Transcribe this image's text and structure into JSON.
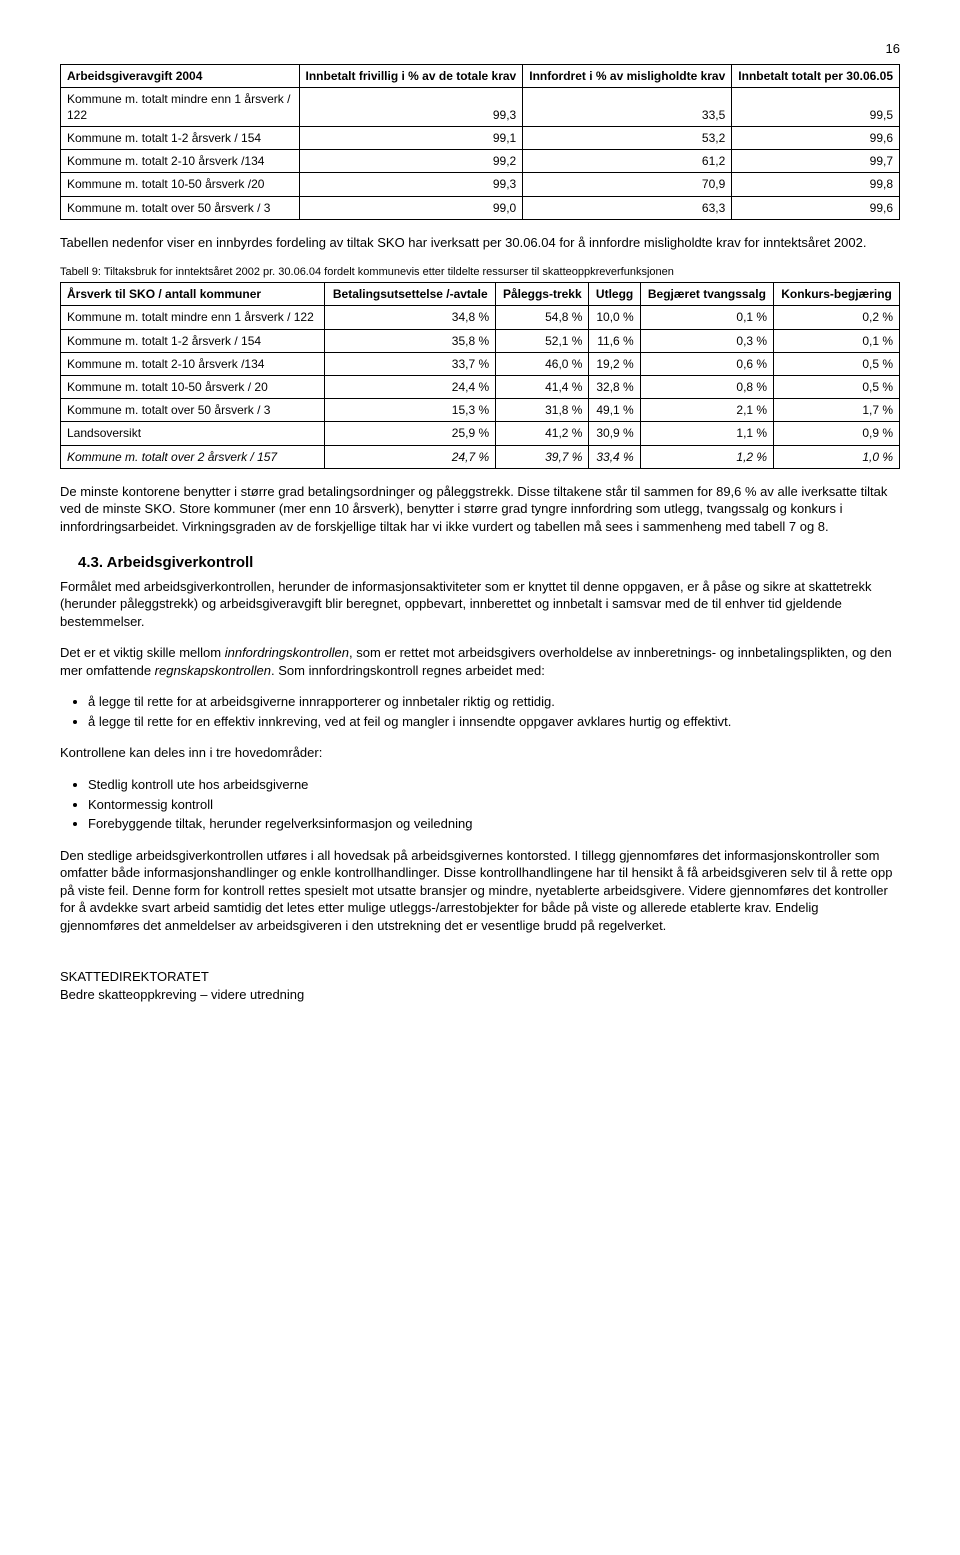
{
  "page_number": "16",
  "table1": {
    "headers": [
      "Arbeidsgiveravgift 2004",
      "Innbetalt frivillig i % av de totale krav",
      "Innfordret i % av misligholdte krav",
      "Innbetalt totalt per 30.06.05"
    ],
    "rows": [
      [
        "Kommune m. totalt mindre enn 1 årsverk / 122",
        "99,3",
        "33,5",
        "99,5"
      ],
      [
        "Kommune m. totalt 1-2 årsverk / 154",
        "99,1",
        "53,2",
        "99,6"
      ],
      [
        "Kommune m. totalt 2-10 årsverk /134",
        "99,2",
        "61,2",
        "99,7"
      ],
      [
        "Kommune m. totalt 10-50 årsverk /20",
        "99,3",
        "70,9",
        "99,8"
      ],
      [
        "Kommune m. totalt over 50 årsverk / 3",
        "99,0",
        "63,3",
        "99,6"
      ]
    ]
  },
  "para1": "Tabellen nedenfor viser en innbyrdes fordeling av tiltak SKO har iverksatt per 30.06.04 for å innfordre misligholdte krav for inntektsåret 2002.",
  "caption2": "Tabell 9: Tiltaksbruk for inntektsåret 2002 pr. 30.06.04 fordelt kommunevis etter tildelte ressurser til skatteoppkreverfunksjonen",
  "table2": {
    "headers": [
      "Årsverk til SKO / antall kommuner",
      "Betalingsutsettelse /-avtale",
      "Påleggs-trekk",
      "Utlegg",
      "Begjæret tvangssalg",
      "Konkurs-begjæring"
    ],
    "rows": [
      [
        "Kommune m. totalt mindre enn 1 årsverk / 122",
        "34,8 %",
        "54,8 %",
        "10,0 %",
        "0,1 %",
        "0,2 %"
      ],
      [
        "Kommune m. totalt 1-2 årsverk / 154",
        "35,8 %",
        "52,1 %",
        "11,6 %",
        "0,3 %",
        "0,1 %"
      ],
      [
        "Kommune m. totalt 2-10 årsverk /134",
        "33,7 %",
        "46,0 %",
        "19,2 %",
        "0,6 %",
        "0,5 %"
      ],
      [
        "Kommune m. totalt 10-50 årsverk / 20",
        "24,4 %",
        "41,4 %",
        "32,8 %",
        "0,8 %",
        "0,5 %"
      ],
      [
        "Kommune m. totalt over 50 årsverk / 3",
        "15,3 %",
        "31,8 %",
        "49,1 %",
        "2,1 %",
        "1,7 %"
      ],
      [
        "Landsoversikt",
        "25,9 %",
        "41,2 %",
        "30,9 %",
        "1,1 %",
        "0,9 %"
      ]
    ],
    "italic_row": [
      "Kommune m. totalt over 2 årsverk / 157",
      "24,7 %",
      "39,7 %",
      "33,4 %",
      "1,2 %",
      "1,0 %"
    ]
  },
  "para2": "De minste kontorene benytter i større grad betalingsordninger og påleggstrekk. Disse tiltakene står til sammen for 89,6 % av alle iverksatte tiltak ved de minste SKO. Store kommuner (mer enn 10 årsverk), benytter i større grad tyngre innfordring som utlegg, tvangssalg og konkurs i innfordringsarbeidet. Virkningsgraden av de forskjellige tiltak har vi ikke vurdert og tabellen må sees i sammenheng med tabell 7 og 8.",
  "section_heading": "4.3. Arbeidsgiverkontroll",
  "para3": "Formålet med arbeidsgiverkontrollen, herunder de informasjonsaktiviteter som er knyttet til denne oppgaven, er å påse og sikre at skattetrekk (herunder påleggstrekk) og arbeidsgiveravgift blir beregnet, oppbevart, innberettet og innbetalt i samsvar med de til enhver tid gjeldende bestemmelser.",
  "para4_pre": "Det er et viktig skille mellom ",
  "para4_em1": "innfordringskontrollen",
  "para4_mid": ", som er rettet mot arbeidsgivers overholdelse av innberetnings- og innbetalingsplikten, og den mer omfattende ",
  "para4_em2": "regnskapskontrollen",
  "para4_post": ". Som innfordringskontroll regnes arbeidet med:",
  "list1": [
    "å legge til rette for at arbeidsgiverne innrapporterer og innbetaler riktig og rettidig.",
    "å legge til rette for en effektiv innkreving, ved at feil og mangler i innsendte oppgaver avklares hurtig og effektivt."
  ],
  "para5": "Kontrollene kan deles inn i tre hovedområder:",
  "list2": [
    "Stedlig kontroll ute hos arbeidsgiverne",
    "Kontormessig kontroll",
    "Forebyggende tiltak, herunder regelverksinformasjon og veiledning"
  ],
  "para6": "Den stedlige arbeidsgiverkontrollen utføres i all hovedsak på arbeidsgivernes kontorsted. I tillegg gjennomføres det informasjonskontroller som omfatter både informasjonshandlinger og enkle kontrollhandlinger. Disse kontrollhandlingene har til hensikt å få arbeidsgiveren selv til å rette opp på viste feil. Denne form for kontroll rettes spesielt mot utsatte bransjer og mindre, nyetablerte arbeidsgivere. Videre gjennomføres det kontroller for å avdekke svart arbeid samtidig det letes etter mulige utleggs-/arrestobjekter for både på viste og allerede etablerte krav. Endelig gjennomføres det anmeldelser av arbeidsgiveren i den utstrekning det er vesentlige brudd på regelverket.",
  "footer_line1": "SKATTEDIREKTORATET",
  "footer_line2": "Bedre skatteoppkreving – videre utredning"
}
